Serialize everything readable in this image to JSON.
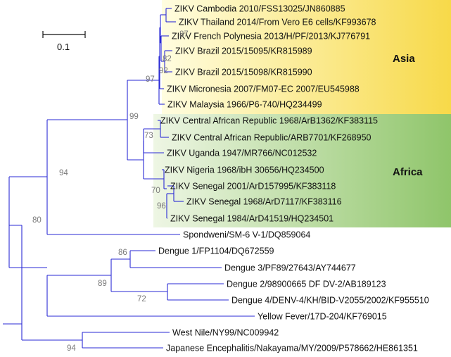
{
  "colors": {
    "branch": "#2a2ad6",
    "asia_band_start": "#fffde0",
    "asia_band_end": "#f7d949",
    "africa_band_start": "#eef6e4",
    "africa_band_end": "#8fc56a",
    "bootstrap_text": "#7a7a7a"
  },
  "scale_bar": {
    "label": "0.1"
  },
  "regions": {
    "asia": "Asia",
    "africa": "Africa"
  },
  "tips": [
    "ZIKV Cambodia 2010/FSS13025/JN860885",
    "ZIKV Thailand 2014/From Vero E6 cells/KF993678",
    "ZIKV French Polynesia 2013/H/PF/2013/KJ776791",
    "ZIKV Brazil 2015/15095/KR815989",
    "ZIKV Brazil 2015/15098/KR815990",
    "ZIKV Micronesia 2007/FM07-EC 2007/EU545988",
    "ZIKV Malaysia 1966/P6-740/HQ234499",
    "ZIKV Central African Republic 1968/ArB1362/KF383115",
    "ZIKV Central African Republic/ARB7701/KF268950",
    "ZIKV Uganda 1947/MR766/NC012532",
    "ZIKV Nigeria 1968/ibH 30656/HQ234500",
    "ZIKV Senegal 2001/ArD157995/KF383118",
    "ZIKV Senegal 1968/ArD7117/KF383116",
    "ZIKV Senegal 1984/ArD41519/HQ234501",
    "Spondweni/SM-6 V-1/DQ859064",
    "Dengue 1/FP1104/DQ672559",
    "Dengue 3/PF89/27643/AY744677",
    "Dengue 2/98900665 DF DV-2/AB189123",
    "Dengue 4/DENV-4/KH/BID-V2055/2002/KF955510",
    "Yellow Fever/17D-204/KF769015",
    "West Nile/NY99/NC009942",
    "Japanese Encephalitis/Nakayama/MY/2009/P578662/HE861351"
  ],
  "bootstrap": [
    "87",
    "82",
    "92",
    "97",
    "99",
    "73",
    "70",
    "96",
    "94",
    "80",
    "86",
    "89",
    "72",
    "94"
  ]
}
